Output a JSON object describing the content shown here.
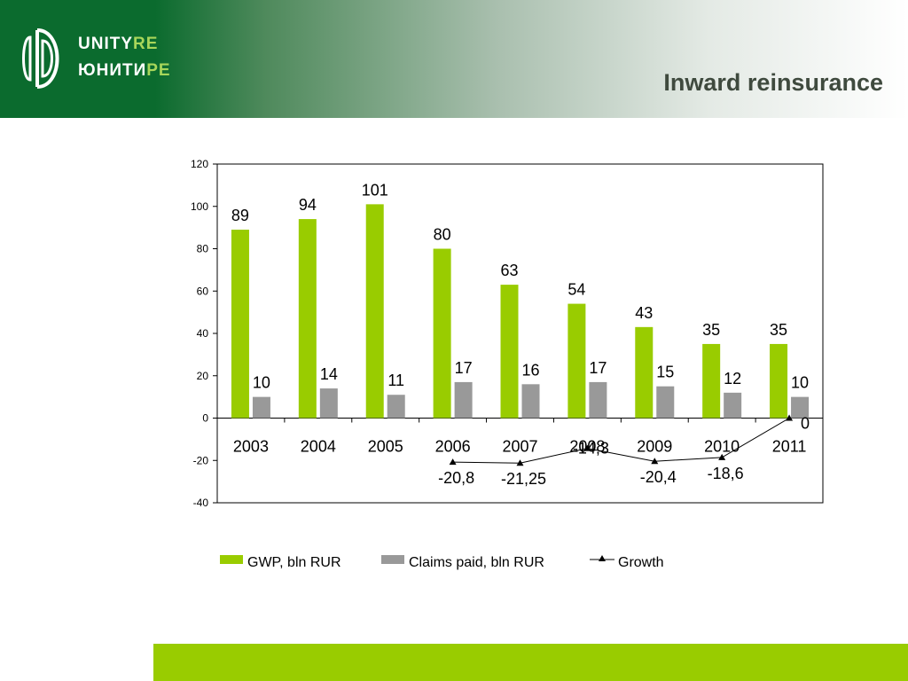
{
  "brand": {
    "line1_main": "UNITY",
    "line1_accent": "RE",
    "line2_main": "ЮНИТИ",
    "line2_accent": "РЕ"
  },
  "page": {
    "title": "Inward reinsurance"
  },
  "colors": {
    "header_green": "#0b6b2e",
    "gwp_bar": "#99cc00",
    "claims_bar": "#999999",
    "footer_bar": "#99cc00"
  },
  "chart_data": {
    "type": "bar",
    "categories": [
      "2003",
      "2004",
      "2005",
      "2006",
      "2007",
      "2008",
      "2009",
      "2010",
      "2011"
    ],
    "ylim": [
      -40,
      120
    ],
    "yticks": [
      "120",
      "100",
      "80",
      "60",
      "40",
      "20",
      "0",
      "-20",
      "-40"
    ],
    "series": [
      {
        "name": "GWP, bln RUR",
        "kind": "bar",
        "values": [
          89,
          94,
          101,
          80,
          63,
          54,
          43,
          35,
          35
        ],
        "labels": [
          "89",
          "94",
          "101",
          "80",
          "63",
          "54",
          "43",
          "35",
          "35"
        ]
      },
      {
        "name": "Claims paid, bln RUR",
        "kind": "bar",
        "values": [
          10,
          14,
          11,
          17,
          16,
          17,
          15,
          12,
          10
        ],
        "labels": [
          "10",
          "14",
          "11",
          "17",
          "16",
          "17",
          "15",
          "12",
          "10"
        ]
      },
      {
        "name": "Growth",
        "kind": "line",
        "values": [
          null,
          null,
          null,
          -20.8,
          -21.25,
          -14.3,
          -20.4,
          -18.6,
          0
        ],
        "labels": [
          "",
          "",
          "",
          "-20,8",
          "-21,25",
          "-14,3",
          "-20,4",
          "-18,6",
          "0"
        ]
      }
    ],
    "legend_position": "bottom",
    "grid": false
  }
}
